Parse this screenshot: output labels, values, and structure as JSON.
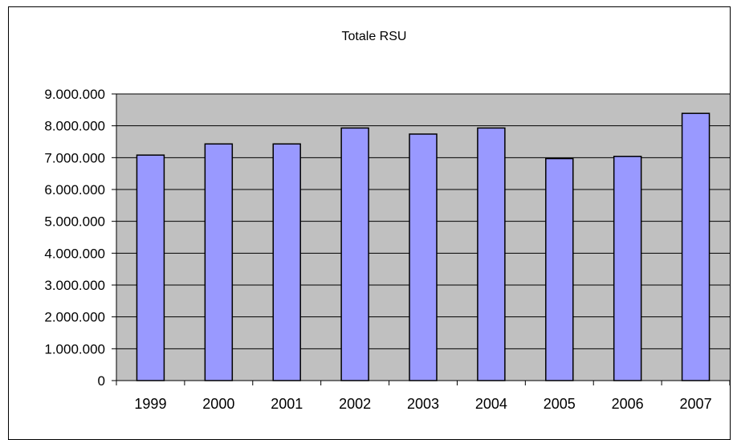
{
  "chart_data": {
    "type": "bar",
    "title": "Totale RSU",
    "xlabel": "",
    "ylabel": "",
    "categories": [
      "1999",
      "2000",
      "2001",
      "2002",
      "2003",
      "2004",
      "2005",
      "2006",
      "2007"
    ],
    "values": [
      7080000,
      7430000,
      7430000,
      7930000,
      7740000,
      7930000,
      6970000,
      7040000,
      8390000
    ],
    "ylim": [
      0,
      9000000
    ],
    "yticks": [
      0,
      1000000,
      2000000,
      3000000,
      4000000,
      5000000,
      6000000,
      7000000,
      8000000,
      9000000
    ],
    "ytick_labels": [
      "0",
      "1.000.000",
      "2.000.000",
      "3.000.000",
      "4.000.000",
      "5.000.000",
      "6.000.000",
      "7.000.000",
      "8.000.000",
      "9.000.000"
    ],
    "grid": true,
    "legend": "none",
    "colors": {
      "bar_fill": "#9999ff",
      "bar_stroke": "#000000",
      "plot_background": "#c0c0c0",
      "gridline": "#000000"
    }
  }
}
